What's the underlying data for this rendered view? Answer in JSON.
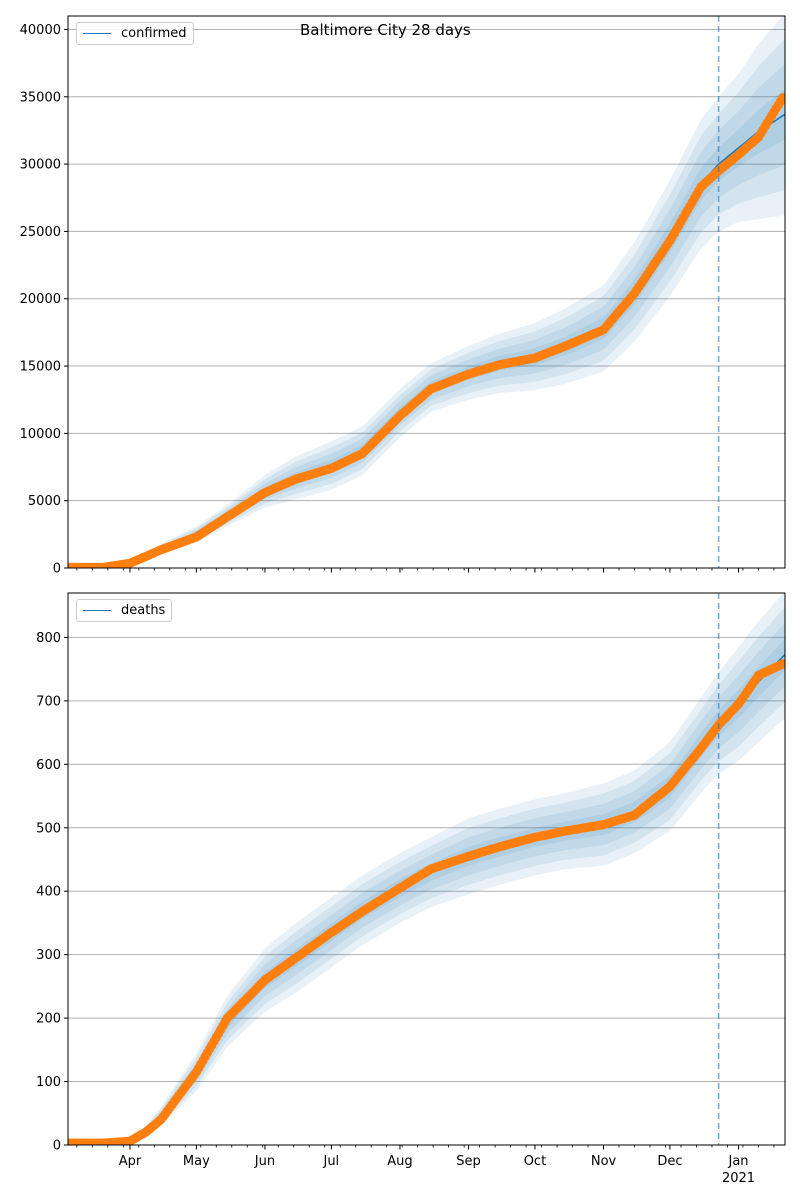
{
  "title": "Baltimore City 28 days",
  "colors": {
    "fit": "#1f77b4",
    "observed": "#ff7f0e",
    "band": "#1f77b4",
    "grid": "#b0b0b0"
  },
  "chart_data": [
    {
      "type": "line",
      "legend": [
        "confirmed"
      ],
      "legend_placement": "top-left",
      "grid": "horizontal",
      "ylim": [
        0,
        41000
      ],
      "yticks": [
        0,
        5000,
        10000,
        15000,
        20000,
        25000,
        30000,
        35000,
        40000
      ],
      "xlim": [
        "2020-03-04",
        "2021-01-22"
      ],
      "forecast_start": "2020-12-23",
      "x": [
        "2020-03-04",
        "2020-03-20",
        "2020-04-01",
        "2020-04-15",
        "2020-05-01",
        "2020-05-15",
        "2020-06-01",
        "2020-06-15",
        "2020-07-01",
        "2020-07-15",
        "2020-08-01",
        "2020-08-15",
        "2020-09-01",
        "2020-09-15",
        "2020-10-01",
        "2020-10-15",
        "2020-11-01",
        "2020-11-15",
        "2020-12-01",
        "2020-12-15",
        "2020-12-23",
        "2021-01-01",
        "2021-01-10",
        "2021-01-22"
      ],
      "series": [
        {
          "name": "confirmed",
          "role": "fit",
          "values": [
            0,
            0,
            250,
            1400,
            2500,
            3900,
            5700,
            6700,
            7600,
            8700,
            11500,
            13400,
            14500,
            15200,
            15700,
            16500,
            17800,
            20500,
            24500,
            28500,
            30000,
            31200,
            32400,
            33700
          ]
        },
        {
          "role": "observed",
          "values": [
            50,
            50,
            350,
            1350,
            2300,
            3800,
            5600,
            6600,
            7400,
            8500,
            11300,
            13300,
            14400,
            15100,
            15600,
            16500,
            17700,
            20400,
            24300,
            28300,
            29500,
            30700,
            32000,
            35200
          ]
        },
        {
          "role": "band_outer_width",
          "values": [
            0,
            0,
            100,
            400,
            600,
            800,
            1200,
            1600,
            1800,
            1800,
            1800,
            1800,
            2000,
            2200,
            2500,
            2800,
            3200,
            3700,
            4300,
            4800,
            5000,
            5500,
            6500,
            7500
          ]
        }
      ]
    },
    {
      "type": "line",
      "legend": [
        "deaths"
      ],
      "legend_placement": "top-left",
      "grid": "horizontal",
      "ylim": [
        0,
        870
      ],
      "yticks": [
        0,
        100,
        200,
        300,
        400,
        500,
        600,
        700,
        800
      ],
      "xlim": [
        "2020-03-04",
        "2021-01-22"
      ],
      "forecast_start": "2020-12-23",
      "x": [
        "2020-03-04",
        "2020-03-20",
        "2020-04-01",
        "2020-04-08",
        "2020-04-15",
        "2020-05-01",
        "2020-05-15",
        "2020-06-01",
        "2020-06-15",
        "2020-07-01",
        "2020-07-15",
        "2020-08-01",
        "2020-08-15",
        "2020-09-01",
        "2020-09-15",
        "2020-10-01",
        "2020-10-15",
        "2020-11-01",
        "2020-11-15",
        "2020-12-01",
        "2020-12-15",
        "2020-12-23",
        "2021-01-01",
        "2021-01-10",
        "2021-01-22"
      ],
      "series": [
        {
          "name": "deaths",
          "role": "fit",
          "values": [
            0,
            0,
            5,
            20,
            45,
            115,
            195,
            260,
            295,
            335,
            370,
            405,
            430,
            455,
            470,
            485,
            495,
            505,
            525,
            565,
            630,
            665,
            695,
            730,
            773
          ]
        },
        {
          "role": "observed",
          "values": [
            3,
            3,
            6,
            20,
            40,
            115,
            200,
            260,
            295,
            335,
            368,
            405,
            435,
            455,
            470,
            485,
            495,
            505,
            520,
            565,
            625,
            662,
            695,
            740,
            760
          ]
        },
        {
          "role": "band_outer_width",
          "values": [
            0,
            0,
            5,
            10,
            15,
            30,
            40,
            50,
            55,
            55,
            55,
            55,
            55,
            60,
            60,
            60,
            60,
            65,
            65,
            70,
            75,
            80,
            90,
            95,
            100
          ]
        }
      ]
    }
  ]
}
